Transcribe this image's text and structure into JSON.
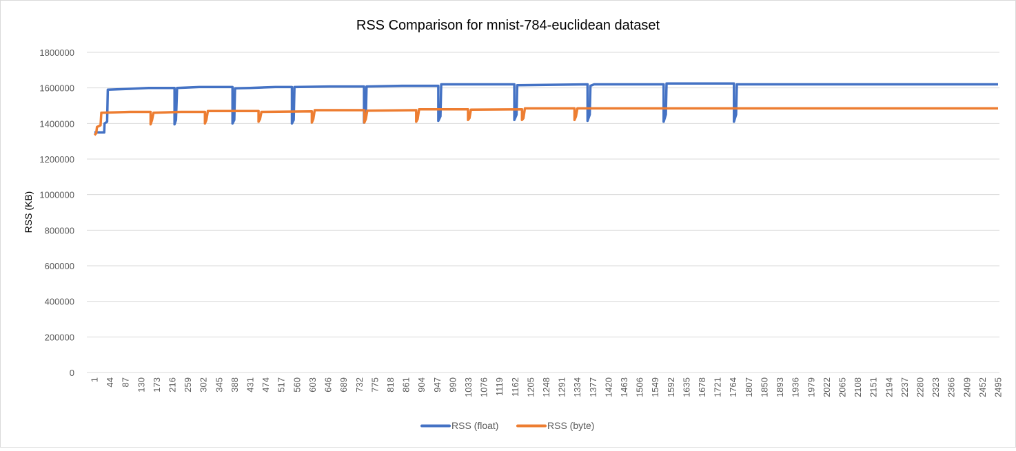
{
  "chart_data": {
    "type": "line",
    "title": "RSS Comparison for mnist-784-euclidean dataset",
    "xlabel": "",
    "ylabel": "RSS (KB)",
    "ylim": [
      0,
      1800000
    ],
    "yticks": [
      0,
      200000,
      400000,
      600000,
      800000,
      1000000,
      1200000,
      1400000,
      1600000,
      1800000
    ],
    "xlim": [
      1,
      2495
    ],
    "xtick_start": 1,
    "xtick_step": 43,
    "grid": true,
    "legend": "bottom",
    "series": [
      {
        "name": "RSS (float)",
        "color": "#4472C4",
        "points": [
          [
            1,
            1350000
          ],
          [
            28,
            1350000
          ],
          [
            29,
            1400000
          ],
          [
            36,
            1410000
          ],
          [
            38,
            1590000
          ],
          [
            100,
            1595000
          ],
          [
            150,
            1600000
          ],
          [
            222,
            1600000
          ],
          [
            222,
            1395000
          ],
          [
            226,
            1420000
          ],
          [
            229,
            1600000
          ],
          [
            290,
            1605000
          ],
          [
            382,
            1605000
          ],
          [
            382,
            1400000
          ],
          [
            387,
            1420000
          ],
          [
            389,
            1598000
          ],
          [
            430,
            1600000
          ],
          [
            500,
            1605000
          ],
          [
            546,
            1605000
          ],
          [
            546,
            1400000
          ],
          [
            551,
            1420000
          ],
          [
            553,
            1605000
          ],
          [
            650,
            1608000
          ],
          [
            745,
            1608000
          ],
          [
            745,
            1405000
          ],
          [
            750,
            1430000
          ],
          [
            752,
            1608000
          ],
          [
            850,
            1612000
          ],
          [
            950,
            1612000
          ],
          [
            950,
            1415000
          ],
          [
            956,
            1440000
          ],
          [
            958,
            1620000
          ],
          [
            1160,
            1620000
          ],
          [
            1160,
            1420000
          ],
          [
            1166,
            1450000
          ],
          [
            1168,
            1615000
          ],
          [
            1362,
            1620000
          ],
          [
            1362,
            1415000
          ],
          [
            1368,
            1450000
          ],
          [
            1370,
            1612000
          ],
          [
            1380,
            1620000
          ],
          [
            1572,
            1620000
          ],
          [
            1572,
            1410000
          ],
          [
            1578,
            1450000
          ],
          [
            1580,
            1625000
          ],
          [
            1766,
            1625000
          ],
          [
            1766,
            1410000
          ],
          [
            1772,
            1450000
          ],
          [
            1774,
            1620000
          ],
          [
            2495,
            1620000
          ]
        ]
      },
      {
        "name": "RSS (byte)",
        "color": "#ED7D31",
        "points": [
          [
            1,
            1335000
          ],
          [
            6,
            1345000
          ],
          [
            8,
            1380000
          ],
          [
            18,
            1390000
          ],
          [
            20,
            1460000
          ],
          [
            100,
            1465000
          ],
          [
            156,
            1465000
          ],
          [
            156,
            1395000
          ],
          [
            160,
            1420000
          ],
          [
            164,
            1460000
          ],
          [
            240,
            1465000
          ],
          [
            306,
            1465000
          ],
          [
            306,
            1400000
          ],
          [
            310,
            1420000
          ],
          [
            314,
            1470000
          ],
          [
            454,
            1470000
          ],
          [
            454,
            1410000
          ],
          [
            458,
            1425000
          ],
          [
            462,
            1465000
          ],
          [
            601,
            1468000
          ],
          [
            601,
            1405000
          ],
          [
            605,
            1425000
          ],
          [
            609,
            1475000
          ],
          [
            746,
            1475000
          ],
          [
            746,
            1405000
          ],
          [
            750,
            1425000
          ],
          [
            754,
            1472000
          ],
          [
            889,
            1475000
          ],
          [
            889,
            1410000
          ],
          [
            893,
            1425000
          ],
          [
            897,
            1480000
          ],
          [
            1032,
            1480000
          ],
          [
            1032,
            1420000
          ],
          [
            1036,
            1430000
          ],
          [
            1040,
            1478000
          ],
          [
            1181,
            1480000
          ],
          [
            1181,
            1420000
          ],
          [
            1185,
            1430000
          ],
          [
            1189,
            1485000
          ],
          [
            1326,
            1485000
          ],
          [
            1326,
            1420000
          ],
          [
            1330,
            1440000
          ],
          [
            1334,
            1485000
          ],
          [
            2495,
            1485000
          ]
        ]
      }
    ]
  }
}
